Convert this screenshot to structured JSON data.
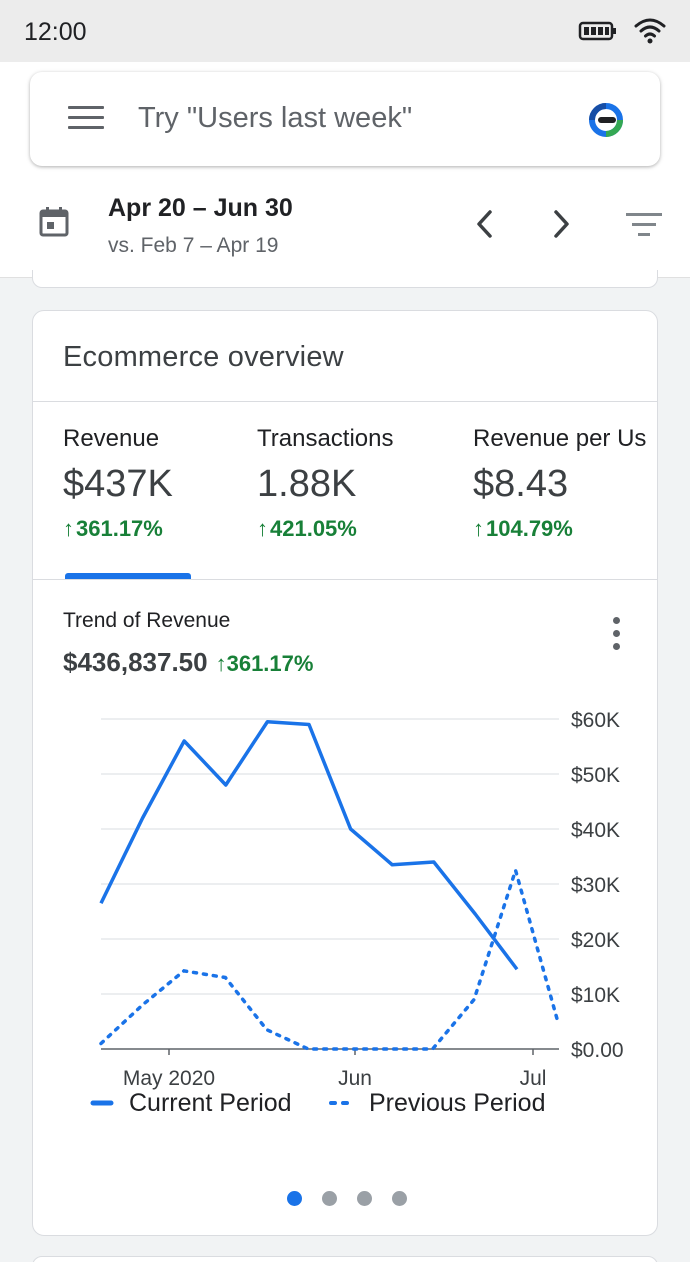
{
  "status_bar": {
    "time": "12:00"
  },
  "search": {
    "placeholder": "Try \"Users last week\""
  },
  "date_range": {
    "main": "Apr 20 – Jun 30",
    "compare": "vs. Feb 7 – Apr 19"
  },
  "card": {
    "title": "Ecommerce overview",
    "metrics": [
      {
        "label": "Revenue",
        "value": "$437K",
        "change": "361.17%"
      },
      {
        "label": "Transactions",
        "value": "1.88K",
        "change": "421.05%"
      },
      {
        "label": "Revenue per Us",
        "value": "$8.43",
        "change": "104.79%"
      }
    ],
    "trend": {
      "title": "Trend of Revenue",
      "total": "$436,837.50",
      "change": "361.17%"
    }
  },
  "colors": {
    "accent": "#1a73e8",
    "positive": "#188038",
    "muted": "#5f6368"
  },
  "icons": [
    "menu-icon",
    "analytics-logo-icon",
    "calendar-icon",
    "chevron-left-icon",
    "chevron-right-icon",
    "filter-icon",
    "more-vert-icon",
    "battery-icon",
    "wifi-icon",
    "arrow-up-icon"
  ],
  "chart_data": {
    "type": "line",
    "title": "Trend of Revenue",
    "x_tick_labels": [
      "May 2020",
      "Jun",
      "Jul"
    ],
    "y_tick_labels": [
      "$0.00",
      "$10K",
      "$20K",
      "$30K",
      "$40K",
      "$50K",
      "$60K"
    ],
    "ylim": [
      0,
      60000
    ],
    "y_axis_side": "right",
    "grid": true,
    "legend_position": "bottom",
    "series": [
      {
        "name": "Current Period",
        "style": "solid",
        "color": "#1a73e8",
        "values": [
          26500,
          42000,
          56000,
          48000,
          59500,
          59000,
          40000,
          33500,
          34000,
          24500,
          14500
        ]
      },
      {
        "name": "Previous Period",
        "style": "dotted",
        "color": "#1a73e8",
        "values": [
          1000,
          8000,
          14200,
          13000,
          3500,
          0,
          0,
          0,
          0,
          9000,
          32500,
          5500
        ]
      }
    ]
  }
}
